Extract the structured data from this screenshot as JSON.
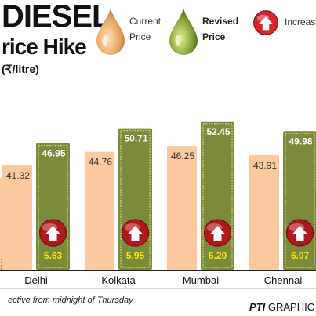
{
  "title": {
    "line1": "DIESEL",
    "line2": "rice Hike",
    "unit": "(₹/litre)"
  },
  "legend": {
    "current_line1": "Current",
    "current_line2": "Price",
    "revised_line1": "Revised",
    "revised_line2": "Price",
    "increase": "Increas"
  },
  "footnote": "ective from midnight of Thursday",
  "credit": {
    "org": "PTI",
    "label": "GRAPHIC"
  },
  "colors": {
    "current": "#fbc9a0",
    "revised": "#7d8a3c",
    "increase_badge": "#d4262b"
  },
  "chart_data": {
    "type": "bar",
    "categories": [
      "Delhi",
      "Kolkata",
      "Mumbai",
      "Chennai"
    ],
    "series": [
      {
        "name": "Current Price",
        "values": [
          41.32,
          44.76,
          46.25,
          43.91
        ]
      },
      {
        "name": "Revised Price",
        "values": [
          46.95,
          50.71,
          52.45,
          49.98
        ]
      }
    ],
    "increase": [
      "5.63",
      "5.95",
      "6.20",
      "6.07"
    ],
    "current_labels": [
      "41.32",
      "44.76",
      "46.25",
      "43.91"
    ],
    "revised_labels": [
      "46.95",
      "50.71",
      "52.45",
      "49.98"
    ],
    "xlabel": "",
    "ylabel": ""
  }
}
